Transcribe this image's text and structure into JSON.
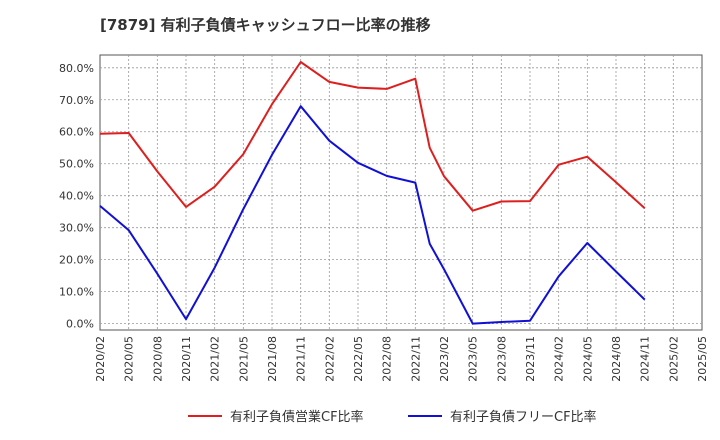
{
  "title": "[7879]  有利子負債キャッシュフロー比率の推移",
  "chart_data": {
    "type": "line",
    "x": [
      "2020/02",
      "2020/05",
      "2020/08",
      "2020/11",
      "2021/02",
      "2021/05",
      "2021/08",
      "2021/11",
      "2022/02",
      "2022/05",
      "2022/08",
      "2022/11",
      "2023/02",
      "2023/05",
      "2023/08",
      "2023/11",
      "2024/02",
      "2024/05",
      "2024/08",
      "2024/11",
      "2025/02",
      "2025/05"
    ],
    "ylim": [
      -2,
      84
    ],
    "yticks": [
      0,
      10,
      20,
      30,
      40,
      50,
      60,
      70,
      80
    ],
    "ytick_labels": [
      "0.0%",
      "10.0%",
      "20.0%",
      "30.0%",
      "40.0%",
      "50.0%",
      "60.0%",
      "70.0%",
      "80.0%"
    ],
    "grid": true,
    "legend_position": "bottom",
    "series": [
      {
        "name": "有利子負債営業CF比率",
        "color": "#dd1f1f",
        "points": [
          [
            0,
            59.4
          ],
          [
            1,
            59.6
          ],
          [
            2,
            47.6
          ],
          [
            3,
            36.5
          ],
          [
            4,
            42.8
          ],
          [
            5,
            53.0
          ],
          [
            6,
            68.6
          ],
          [
            7,
            81.8
          ],
          [
            8,
            75.6
          ],
          [
            9,
            73.8
          ],
          [
            10,
            73.4
          ],
          [
            11,
            76.6
          ],
          [
            11.5,
            55.0
          ],
          [
            12,
            46.1
          ],
          [
            13,
            35.3
          ],
          [
            14,
            38.2
          ],
          [
            15,
            38.3
          ],
          [
            16,
            49.7
          ],
          [
            17,
            52.2
          ],
          [
            18,
            44.2
          ],
          [
            19,
            36.1
          ]
        ]
      },
      {
        "name": "有利子負債フリーCF比率",
        "color": "#1010d6",
        "points": [
          [
            0,
            36.8
          ],
          [
            1,
            29.2
          ],
          [
            2,
            15.6
          ],
          [
            3,
            1.4
          ],
          [
            4,
            17.5
          ],
          [
            5,
            35.8
          ],
          [
            6,
            52.8
          ],
          [
            7,
            68.0
          ],
          [
            8,
            57.2
          ],
          [
            9,
            50.3
          ],
          [
            10,
            46.2
          ],
          [
            11,
            44.1
          ],
          [
            11.5,
            25.0
          ],
          [
            12,
            17.0
          ],
          [
            13,
            0.0
          ],
          [
            14,
            0.5
          ],
          [
            15,
            0.9
          ],
          [
            16,
            14.8
          ],
          [
            17,
            25.2
          ],
          [
            18,
            16.3
          ],
          [
            19,
            7.5
          ]
        ]
      }
    ]
  }
}
